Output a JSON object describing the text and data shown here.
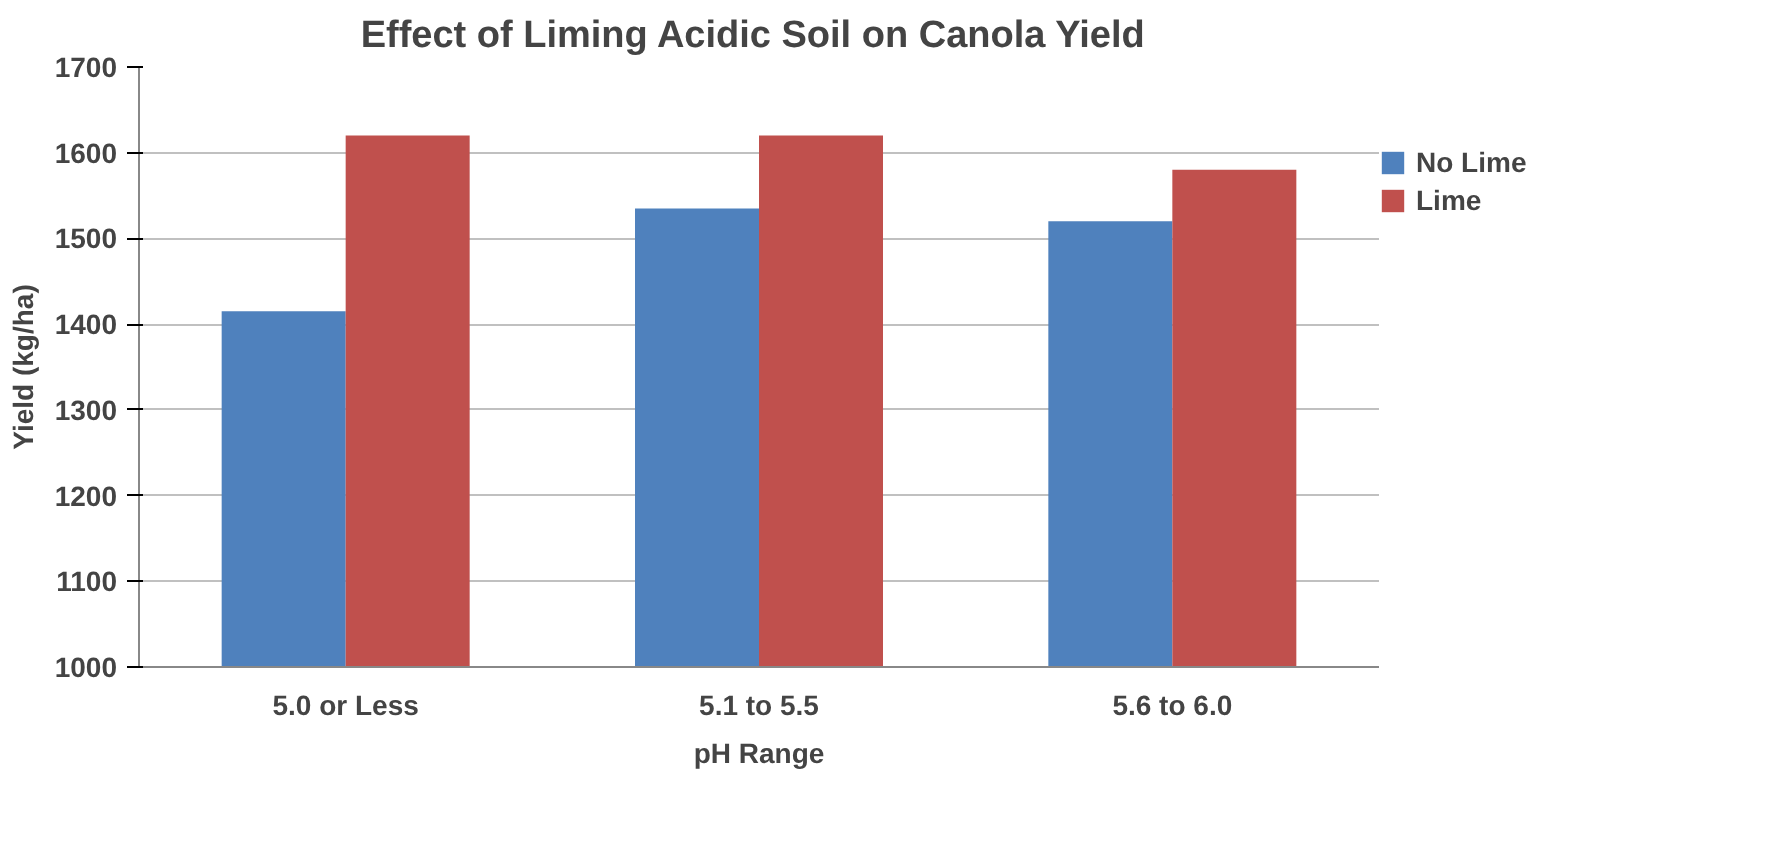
{
  "chart_data": {
    "type": "bar",
    "title": "Effect of Liming  Acidic Soil on Canola Yield",
    "xlabel": "pH Range",
    "ylabel": "Yield (kg/ha)",
    "categories": [
      "5.0 or Less",
      "5.1 to 5.5",
      "5.6 to 6.0"
    ],
    "series": [
      {
        "name": "No Lime",
        "color": "#4f81bd",
        "values": [
          1415,
          1535,
          1520
        ]
      },
      {
        "name": "Lime",
        "color": "#c0504d",
        "values": [
          1620,
          1620,
          1580
        ]
      }
    ],
    "ylim": [
      1000,
      1700
    ],
    "yticks": [
      1000,
      1100,
      1200,
      1300,
      1400,
      1500,
      1600,
      1700
    ],
    "grid": "y",
    "legend": "right"
  }
}
